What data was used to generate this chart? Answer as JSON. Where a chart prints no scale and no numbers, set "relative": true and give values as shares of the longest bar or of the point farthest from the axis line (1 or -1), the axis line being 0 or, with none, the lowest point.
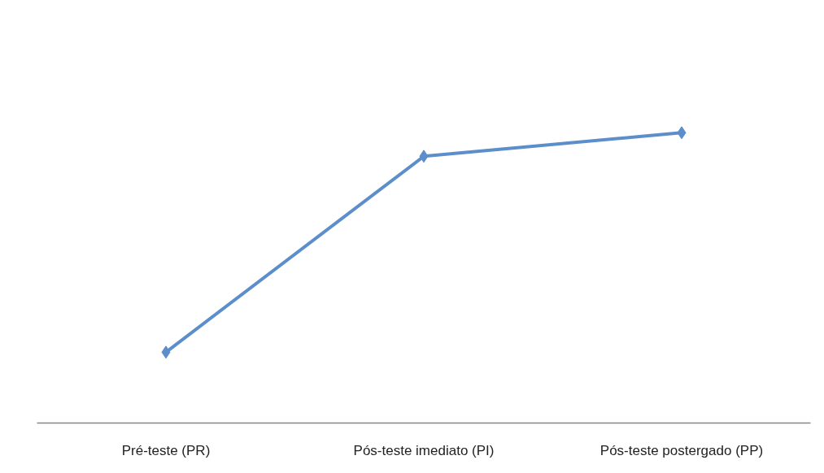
{
  "chart_data": {
    "type": "line",
    "relative": true,
    "categories": [
      "Pré-teste (PR)",
      "Pós-teste imediato (PI)",
      "Pós-teste postergado (PP)"
    ],
    "series": [
      {
        "color": "#5b8ecb",
        "values": [
          0.244,
          0.919,
          1
        ]
      }
    ],
    "marker": "diamond",
    "line_style": "solid",
    "grid": false,
    "tick_labels": "x"
  }
}
